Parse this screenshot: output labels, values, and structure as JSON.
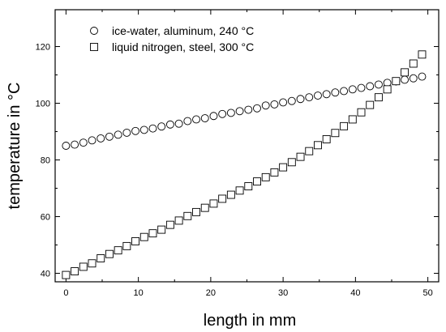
{
  "chart_data": {
    "type": "scatter",
    "title": "",
    "xlabel": "length in mm",
    "ylabel": "temperature in °C",
    "xlim": [
      -1.5,
      51.5
    ],
    "ylim": [
      37,
      133
    ],
    "x_ticks": [
      0,
      10,
      20,
      30,
      40,
      50
    ],
    "y_ticks": [
      40,
      60,
      80,
      100,
      120
    ],
    "grid": false,
    "legend_position": "top-left",
    "series": [
      {
        "name": "ice-water, aluminum, 240 °C",
        "marker": "circle",
        "color": "#000000",
        "x": [
          0,
          1.2,
          2.4,
          3.6,
          4.8,
          6.0,
          7.2,
          8.4,
          9.6,
          10.8,
          12.0,
          13.2,
          14.4,
          15.6,
          16.8,
          18.0,
          19.2,
          20.4,
          21.6,
          22.8,
          24.0,
          25.2,
          26.4,
          27.6,
          28.8,
          30.0,
          31.2,
          32.4,
          33.6,
          34.8,
          36.0,
          37.2,
          38.4,
          39.6,
          40.8,
          42.0,
          43.2,
          44.4,
          45.6,
          46.8,
          48.0,
          49.2
        ],
        "y": [
          85.0,
          85.4,
          86.1,
          86.9,
          87.6,
          88.2,
          88.9,
          89.6,
          90.2,
          90.6,
          91.1,
          91.8,
          92.5,
          92.8,
          93.7,
          94.3,
          94.7,
          95.5,
          96.2,
          96.6,
          97.2,
          97.7,
          98.2,
          99.2,
          99.6,
          100.3,
          100.8,
          101.5,
          102.1,
          102.7,
          103.2,
          103.8,
          104.3,
          104.9,
          105.4,
          106.0,
          106.6,
          107.2,
          107.7,
          108.3,
          108.8,
          109.4
        ]
      },
      {
        "name": "liquid nitrogen, steel, 300 °C",
        "marker": "square",
        "color": "#000000",
        "x": [
          0,
          1.2,
          2.4,
          3.6,
          4.8,
          6.0,
          7.2,
          8.4,
          9.6,
          10.8,
          12.0,
          13.2,
          14.4,
          15.6,
          16.8,
          18.0,
          19.2,
          20.4,
          21.6,
          22.8,
          24.0,
          25.2,
          26.4,
          27.6,
          28.8,
          30.0,
          31.2,
          32.4,
          33.6,
          34.8,
          36.0,
          37.2,
          38.4,
          39.6,
          40.8,
          42.0,
          43.2,
          44.4,
          45.6,
          46.8,
          48.0,
          49.2
        ],
        "y": [
          39.4,
          40.7,
          42.3,
          43.5,
          45.3,
          46.8,
          48.1,
          49.6,
          51.3,
          52.8,
          54.1,
          55.4,
          57.1,
          58.6,
          60.2,
          61.6,
          63.1,
          64.6,
          66.3,
          67.7,
          69.2,
          70.7,
          72.4,
          73.9,
          75.6,
          77.4,
          79.2,
          81.1,
          83.1,
          85.2,
          87.3,
          89.5,
          91.9,
          94.3,
          96.8,
          99.4,
          102.1,
          104.9,
          107.8,
          110.9,
          114.0,
          117.2
        ]
      }
    ]
  }
}
